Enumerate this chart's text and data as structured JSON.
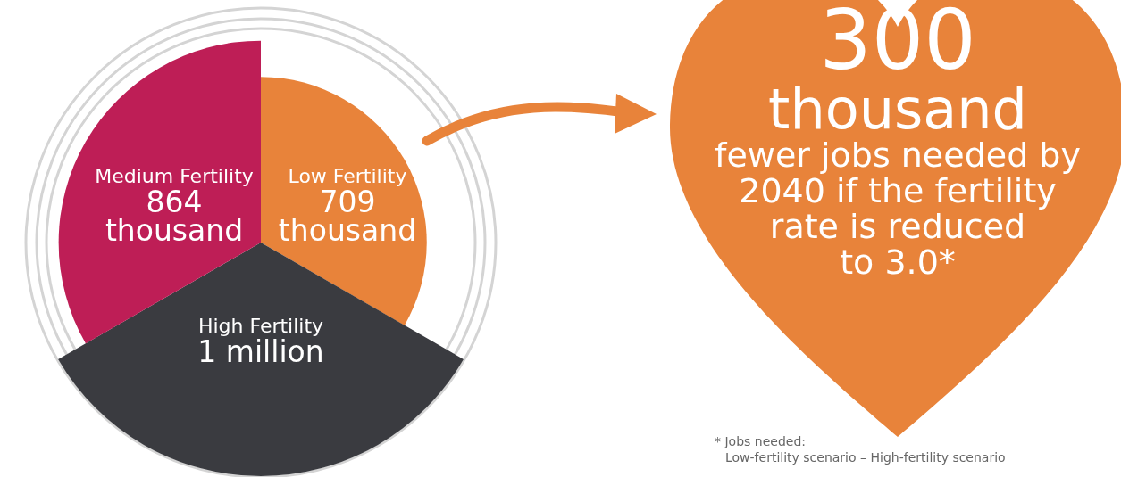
{
  "chart_data": {
    "type": "other",
    "categories": [
      "Low Fertility",
      "High Fertility",
      "Medium Fertility"
    ],
    "values": [
      709000,
      1000000,
      864000
    ],
    "value_labels": [
      "709\nthousand",
      "1 million",
      "864\nthousand"
    ],
    "colors": [
      "#e8833a",
      "#3a3b40",
      "#be1e56"
    ],
    "annotations": [
      "300\nthousand\nfewer jobs needed by\n2040 if the fertility\nrate is reduced\nto 3.0*",
      "* Jobs needed:\nLow-fertility scenario – High-fertility scenario"
    ]
  }
}
